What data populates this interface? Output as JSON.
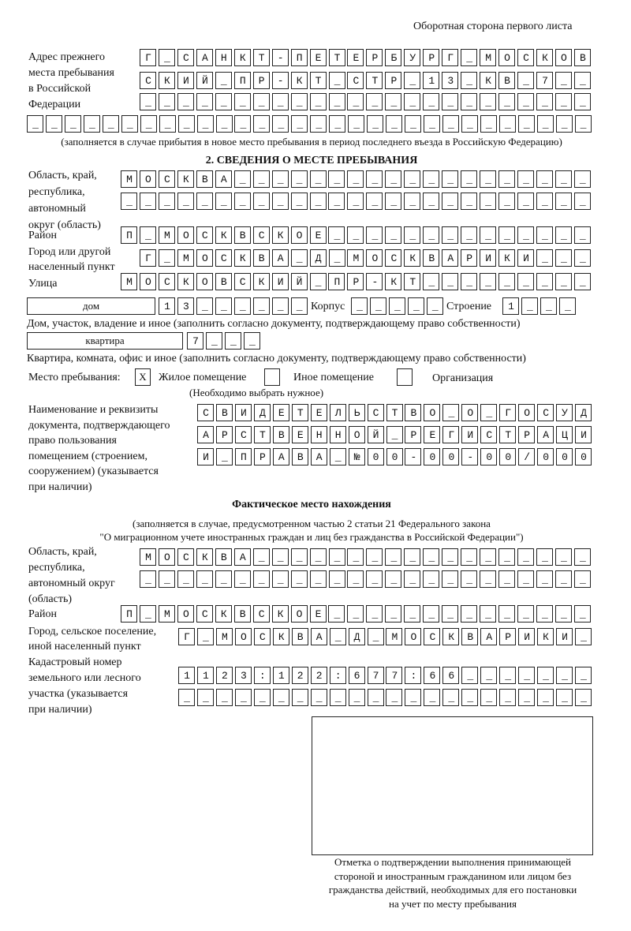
{
  "header": "Оборотная сторона первого листа",
  "prev_address": {
    "label": [
      "Адрес прежнего",
      "места пребывания",
      "в Российской",
      "Федерации"
    ],
    "rows": [
      "Г_САНКТ-ПЕТЕРБУРГ_МОСКОВ",
      "СКИЙ_ПР-КТ_СТР_13_КВ_7__",
      "________________________",
      "______________________________"
    ],
    "note": "(заполняется в случае прибытия в новое место пребывания в период последнего въезда в Российскую Федерацию)"
  },
  "section2": {
    "title": "2. СВЕДЕНИЯ О МЕСТЕ ПРЕБЫВАНИЯ",
    "region_label": [
      "Область, край,",
      "республика,",
      "автономный",
      "округ (область)"
    ],
    "region_rows": [
      "МОСКВА___________________",
      "_________________________"
    ],
    "district_label": "Район",
    "district": "П_МОСКВСКОЕ______________",
    "city_label": [
      "Город или другой",
      "населенный пункт"
    ],
    "city": "Г_МОСКВА_Д_МОСКВАРИКИ___",
    "street_label": "Улица",
    "street": "МОСКОВСКИЙ_ПР-КТ_________",
    "house_type": "дом",
    "house": "13______",
    "korpus_label": "Корпус",
    "korpus": "_____",
    "building_label": "Строение",
    "building": "1___",
    "house_note": "Дом, участок, владение и иное (заполнить согласно документу, подтверждающему право собственности)",
    "apt_type": "квартира",
    "apt": "7___",
    "apt_note": "Квартира, комната, офис и иное (заполнить согласно документу, подтверждающему право собственности)",
    "stay_label": "Место пребывания:",
    "stay_options": [
      {
        "mark": "X",
        "label": "Жилое помещение",
        "checked": true
      },
      {
        "mark": "",
        "label": "Иное помещение",
        "checked": false
      },
      {
        "mark": "",
        "label": "Организация",
        "checked": false
      }
    ],
    "stay_note": "(Необходимо выбрать нужное)",
    "doc_label": [
      "Наименование и реквизиты",
      "документа, подтверждающего",
      "право пользования",
      "помещением (строением,",
      "сооружением) (указывается",
      "при наличии)"
    ],
    "doc_rows": [
      "СВИДЕТЕЛЬСТВО_О_ГОСУД",
      "АРСТВЕННОЙ_РЕГИСТРАЦИ",
      "И_ПРАВА_№00-00-00/000"
    ]
  },
  "actual": {
    "title": "Фактическое место нахождения",
    "note1": "(заполняется в случае, предусмотренном частью 2 статьи 21 Федерального закона",
    "note2": "\"О миграционном учете иностранных граждан и лиц без гражданства в Российской Федерации\")",
    "region_label": [
      "Область, край,",
      "республика,",
      "автономный округ",
      "(область)"
    ],
    "region_rows": [
      "МОСКВА__________________",
      "________________________"
    ],
    "district_label": "Район",
    "district": "П_МОСКВСКОЕ______________",
    "city_label": [
      "Город, сельское поселение,",
      "иной населенный пункт"
    ],
    "city": "Г_МОСКВА_Д_МОСКВАРИКИ_",
    "cadastre_label": [
      "Кадастровый номер",
      "земельного или лесного",
      "участка (указывается",
      "при наличии)"
    ],
    "cadastre_rows": [
      "1123:122:677:66_______",
      "______________________"
    ]
  },
  "stamp": {
    "caption": [
      "Отметка о подтверждении выполнения принимающей",
      "стороной и иностранным гражданином или лицом без",
      "гражданства действий, необходимых для его постановки",
      "на учет по месту пребывания"
    ]
  }
}
